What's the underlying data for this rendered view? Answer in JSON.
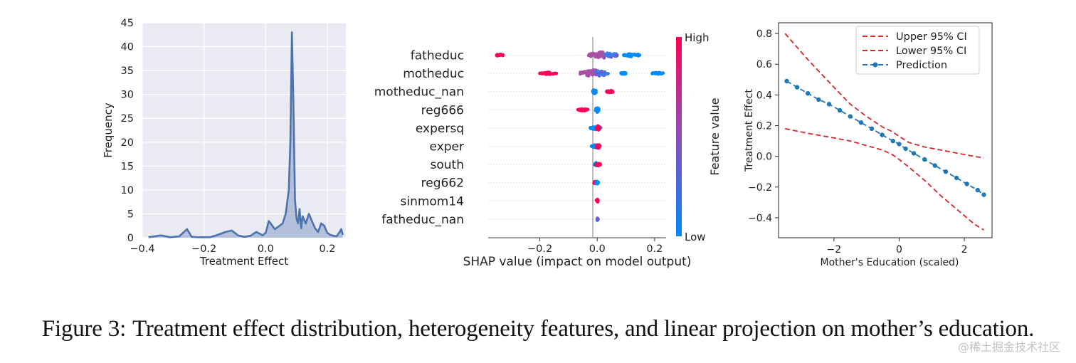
{
  "caption": {
    "label": "Figure 3:",
    "text": "Treatment effect distribution, heterogeneity features, and linear projection on mother’s education."
  },
  "watermark": "@稀土掘金技术社区",
  "colors": {
    "panel_bg": "#eaeaf2",
    "kde": "#4c72b0",
    "shap_high": "#ff0052",
    "shap_low": "#008bfb",
    "ci": "#d62728",
    "prediction": "#1f77b4"
  },
  "chart_data": [
    {
      "type": "area",
      "title": "",
      "xlabel": "Treatment Effect",
      "ylabel": "Frequency",
      "xlim": [
        -0.4,
        0.26
      ],
      "ylim": [
        0,
        45
      ],
      "xticks": [
        "−0.4",
        "−0.2",
        "0.0",
        "0.2"
      ],
      "xtick_values": [
        -0.4,
        -0.2,
        0.0,
        0.2
      ],
      "yticks": [
        "0",
        "5",
        "10",
        "15",
        "20",
        "25",
        "30",
        "35",
        "40",
        "45"
      ],
      "ytick_values": [
        0,
        5,
        10,
        15,
        20,
        25,
        30,
        35,
        40,
        45
      ],
      "grid": true,
      "x": [
        -0.38,
        -0.36,
        -0.34,
        -0.31,
        -0.28,
        -0.265,
        -0.255,
        -0.24,
        -0.22,
        -0.2,
        -0.18,
        -0.16,
        -0.13,
        -0.11,
        -0.09,
        -0.07,
        -0.05,
        -0.03,
        -0.01,
        0.0,
        0.01,
        0.03,
        0.045,
        0.055,
        0.065,
        0.075,
        0.08,
        0.085,
        0.09,
        0.095,
        0.1,
        0.105,
        0.11,
        0.115,
        0.12,
        0.13,
        0.14,
        0.15,
        0.16,
        0.17,
        0.18,
        0.19,
        0.2,
        0.21,
        0.22,
        0.23,
        0.24,
        0.245,
        0.25
      ],
      "y": [
        0.1,
        0.3,
        0.5,
        0.1,
        0.3,
        1.2,
        1.8,
        0.2,
        0.1,
        0.1,
        0.1,
        0.5,
        1.2,
        1.5,
        0.5,
        0.2,
        0.4,
        1.2,
        0.5,
        1.0,
        3.5,
        1.8,
        2.5,
        3.0,
        5.0,
        10.0,
        20.0,
        43.0,
        28.0,
        8.0,
        4.0,
        3.0,
        6.0,
        2.0,
        4.5,
        3.0,
        5.0,
        3.5,
        2.0,
        1.2,
        3.0,
        2.5,
        1.0,
        0.6,
        0.4,
        0.3,
        1.2,
        1.8,
        0.6
      ]
    },
    {
      "type": "scatter",
      "title": "",
      "xlabel": "SHAP value (impact on model output)",
      "ylabel": "",
      "xlim": [
        -0.38,
        0.24
      ],
      "xticks": [
        "−0.2",
        "0.0",
        "0.2"
      ],
      "xtick_values": [
        -0.2,
        0.0,
        0.2
      ],
      "features": [
        "fatheduc",
        "motheduc",
        "motheduc_nan",
        "reg666",
        "expersq",
        "exper",
        "south",
        "reg662",
        "sinmom14",
        "fatheduc_nan"
      ],
      "colorbar": {
        "label": "Feature value",
        "high": "High",
        "low": "Low"
      },
      "clusters": [
        [
          {
            "x": -0.34,
            "spread": 0.012,
            "height": 3,
            "level": "high"
          },
          {
            "x": 0.02,
            "spread": 0.05,
            "height": 9,
            "level": "mid"
          },
          {
            "x": 0.12,
            "spread": 0.03,
            "height": 4,
            "level": "low"
          }
        ],
        [
          {
            "x": -0.17,
            "spread": 0.03,
            "height": 3,
            "level": "high"
          },
          {
            "x": -0.01,
            "spread": 0.05,
            "height": 9,
            "level": "mid"
          },
          {
            "x": 0.09,
            "spread": 0.01,
            "height": 3,
            "level": "low"
          },
          {
            "x": 0.21,
            "spread": 0.02,
            "height": 3,
            "level": "low"
          }
        ],
        [
          {
            "x": -0.01,
            "spread": 0.006,
            "height": 7,
            "level": "low"
          },
          {
            "x": 0.045,
            "spread": 0.015,
            "height": 3,
            "level": "high"
          }
        ],
        [
          {
            "x": -0.05,
            "spread": 0.018,
            "height": 3,
            "level": "high"
          },
          {
            "x": 0.0,
            "spread": 0.006,
            "height": 7,
            "level": "low"
          }
        ],
        [
          {
            "x": -0.005,
            "spread": 0.02,
            "height": 4,
            "level": "low"
          },
          {
            "x": 0.003,
            "spread": 0.005,
            "height": 7,
            "level": "high"
          }
        ],
        [
          {
            "x": -0.005,
            "spread": 0.015,
            "height": 4,
            "level": "low"
          },
          {
            "x": 0.003,
            "spread": 0.005,
            "height": 7,
            "level": "high"
          }
        ],
        [
          {
            "x": -0.003,
            "spread": 0.006,
            "height": 5,
            "level": "low"
          },
          {
            "x": 0.003,
            "spread": 0.008,
            "height": 4,
            "level": "high"
          }
        ],
        [
          {
            "x": -0.008,
            "spread": 0.005,
            "height": 3,
            "level": "high"
          },
          {
            "x": 0.0,
            "spread": 0.004,
            "height": 5,
            "level": "low"
          }
        ],
        [
          {
            "x": 0.0,
            "spread": 0.003,
            "height": 5,
            "level": "high"
          }
        ],
        [
          {
            "x": 0.0,
            "spread": 0.003,
            "height": 4,
            "level": "mid"
          }
        ]
      ]
    },
    {
      "type": "line",
      "title": "",
      "xlabel": "Mother's Education (scaled)",
      "ylabel": "Treatment Effect",
      "xlim": [
        -3.7,
        2.85
      ],
      "ylim": [
        -0.53,
        0.87
      ],
      "xticks": [
        "−2",
        "0",
        "2"
      ],
      "xtick_values": [
        -2,
        0,
        2
      ],
      "yticks": [
        "−0.4",
        "−0.2",
        "0.0",
        "0.2",
        "0.4",
        "0.6",
        "0.8"
      ],
      "ytick_values": [
        -0.4,
        -0.2,
        0.0,
        0.2,
        0.4,
        0.6,
        0.8
      ],
      "grid": false,
      "legend": "top-right",
      "series": [
        {
          "name": "Upper 95% CI",
          "style": "dashed",
          "x": [
            -3.5,
            -2.8,
            -2.0,
            -1.5,
            -1.0,
            -0.5,
            -0.2,
            0.0,
            0.3,
            0.8,
            1.3,
            1.8,
            2.3,
            2.6
          ],
          "y": [
            0.8,
            0.63,
            0.45,
            0.34,
            0.26,
            0.19,
            0.16,
            0.13,
            0.09,
            0.06,
            0.04,
            0.02,
            0.0,
            -0.01
          ]
        },
        {
          "name": "Lower 95% CI",
          "style": "dashed",
          "x": [
            -3.5,
            -2.8,
            -2.0,
            -1.5,
            -1.0,
            -0.5,
            -0.2,
            0.0,
            0.3,
            0.8,
            1.3,
            1.8,
            2.3,
            2.6
          ],
          "y": [
            0.18,
            0.15,
            0.12,
            0.1,
            0.07,
            0.04,
            0.01,
            -0.02,
            -0.07,
            -0.16,
            -0.26,
            -0.35,
            -0.44,
            -0.48
          ]
        },
        {
          "name": "Prediction",
          "style": "dash-dot-marker",
          "x": [
            -3.45,
            -3.13,
            -2.8,
            -2.47,
            -2.15,
            -1.82,
            -1.5,
            -1.17,
            -0.84,
            -0.52,
            -0.19,
            0.0,
            0.2,
            0.45,
            0.78,
            1.1,
            1.43,
            1.76,
            2.08,
            2.41,
            2.6
          ],
          "y": [
            0.49,
            0.45,
            0.41,
            0.37,
            0.34,
            0.3,
            0.26,
            0.22,
            0.18,
            0.14,
            0.1,
            0.08,
            0.05,
            0.02,
            -0.02,
            -0.06,
            -0.1,
            -0.14,
            -0.18,
            -0.22,
            -0.25
          ]
        }
      ]
    }
  ]
}
